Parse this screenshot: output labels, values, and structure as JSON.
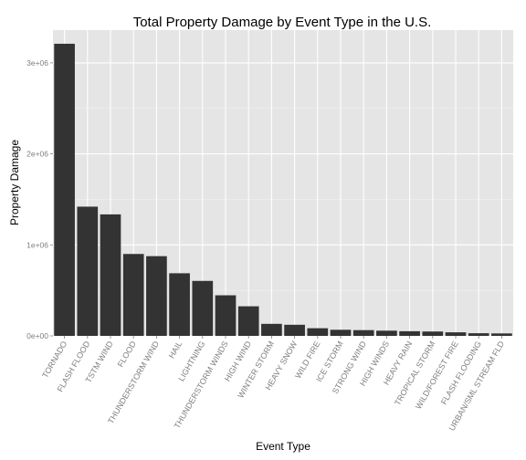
{
  "chart_data": {
    "type": "bar",
    "title": "Total Property Damage by Event Type in the U.S.",
    "xlabel": "Event Type",
    "ylabel": "Property Damage",
    "ylim": [
      0,
      3360000
    ],
    "y_ticks": [
      {
        "value": 0,
        "label": "0e+00"
      },
      {
        "value": 1000000,
        "label": "1e+06"
      },
      {
        "value": 2000000,
        "label": "2e+06"
      },
      {
        "value": 3000000,
        "label": "3e+06"
      }
    ],
    "categories": [
      "TORNADO",
      "FLASH FLOOD",
      "TSTM WIND",
      "FLOOD",
      "THUNDERSTORM WIND",
      "HAIL",
      "LIGHTNING",
      "THUNDERSTORM WINDS",
      "HIGH WIND",
      "WINTER STORM",
      "HEAVY SNOW",
      "WILD FIRE",
      "ICE STORM",
      "STRONG WIND",
      "HIGH WINDS",
      "HEAVY RAIN",
      "TROPICAL STORM",
      "WILD/FOREST FIRE",
      "FLASH FLOODING",
      "URBAN/SML STREAM FLD"
    ],
    "values": [
      3210000,
      1420000,
      1335000,
      900000,
      876000,
      688000,
      604000,
      446000,
      325000,
      132000,
      122000,
      84000,
      67000,
      63000,
      57000,
      51000,
      48000,
      39000,
      29000,
      27000
    ],
    "grid": true,
    "colors": {
      "panel_background": "#e5e5e5",
      "grid_major": "#ffffff",
      "grid_minor": "#f2f2f2",
      "bar_fill": "#333333"
    }
  }
}
